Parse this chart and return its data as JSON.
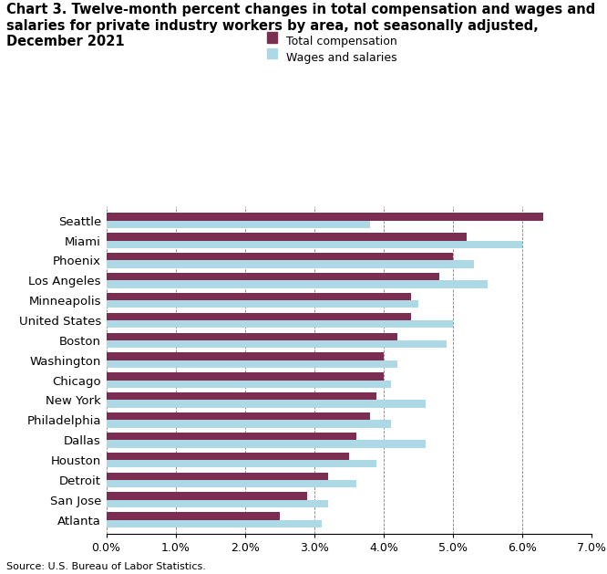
{
  "title_line1": "Chart 3. Twelve-month percent changes in total compensation and wages and",
  "title_line2": "salaries for private industry workers by area, not seasonally adjusted,",
  "title_line3": "December 2021",
  "categories": [
    "Atlanta",
    "San Jose",
    "Detroit",
    "Houston",
    "Dallas",
    "Philadelphia",
    "New York",
    "Chicago",
    "Washington",
    "Boston",
    "United States",
    "Minneapolis",
    "Los Angeles",
    "Phoenix",
    "Miami",
    "Seattle"
  ],
  "total_compensation": [
    2.5,
    2.9,
    3.2,
    3.5,
    3.6,
    3.8,
    3.9,
    4.0,
    4.0,
    4.2,
    4.4,
    4.4,
    4.8,
    5.0,
    5.2,
    6.3
  ],
  "wages_and_salaries": [
    3.1,
    3.2,
    3.6,
    3.9,
    4.6,
    4.1,
    4.6,
    4.1,
    4.2,
    4.9,
    5.0,
    4.5,
    5.5,
    5.3,
    6.0,
    3.8
  ],
  "color_total": "#7B2D52",
  "color_wages": "#ADD8E6",
  "source": "Source: U.S. Bureau of Labor Statistics.",
  "xlim": [
    0,
    7.0
  ],
  "xticks": [
    0.0,
    1.0,
    2.0,
    3.0,
    4.0,
    5.0,
    6.0,
    7.0
  ],
  "xtick_labels": [
    "0.0%",
    "1.0%",
    "2.0%",
    "3.0%",
    "4.0%",
    "5.0%",
    "6.0%",
    "7.0%"
  ],
  "legend_labels": [
    "Total compensation",
    "Wages and salaries"
  ],
  "bar_height": 0.38
}
